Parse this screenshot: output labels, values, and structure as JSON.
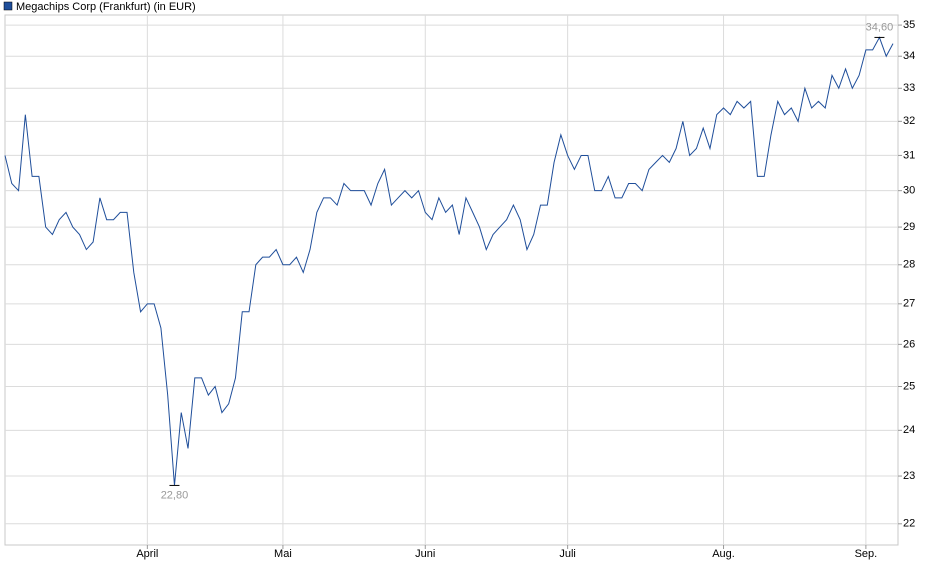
{
  "chart_data": {
    "type": "line",
    "yscale": "log",
    "grid": true,
    "legend": "top-left",
    "ylim": [
      21.57,
      35.33
    ],
    "yticks": [
      22,
      23,
      24,
      25,
      26,
      27,
      28,
      29,
      30,
      31,
      32,
      33,
      34,
      35
    ],
    "categories": [
      null,
      null,
      null,
      null,
      null,
      null,
      null,
      null,
      null,
      null,
      null,
      null,
      null,
      null,
      null,
      null,
      null,
      null,
      null,
      null,
      null,
      "April",
      null,
      null,
      null,
      null,
      null,
      null,
      null,
      null,
      null,
      null,
      null,
      null,
      null,
      null,
      null,
      null,
      null,
      null,
      null,
      "Mai",
      null,
      null,
      null,
      null,
      null,
      null,
      null,
      null,
      null,
      null,
      null,
      null,
      null,
      null,
      null,
      null,
      null,
      null,
      null,
      null,
      "Juni",
      null,
      null,
      null,
      null,
      null,
      null,
      null,
      null,
      null,
      null,
      null,
      null,
      null,
      null,
      null,
      null,
      null,
      null,
      null,
      null,
      "Juli",
      null,
      null,
      null,
      null,
      null,
      null,
      null,
      null,
      null,
      null,
      null,
      null,
      null,
      null,
      null,
      null,
      null,
      null,
      null,
      null,
      null,
      null,
      "Aug.",
      null,
      null,
      null,
      null,
      null,
      null,
      null,
      null,
      null,
      null,
      null,
      null,
      null,
      null,
      null,
      null,
      null,
      null,
      null,
      null,
      "Sep.",
      null,
      null,
      null,
      null
    ],
    "series": [
      {
        "name": "Megachips Corp (Frankfurt) (in EUR)",
        "color": "#1f4e9a",
        "values": [
          31.0,
          30.2,
          30.0,
          32.2,
          30.4,
          30.4,
          29.0,
          28.8,
          29.2,
          29.4,
          29.0,
          28.8,
          28.4,
          28.6,
          29.8,
          29.2,
          29.2,
          29.4,
          29.4,
          27.8,
          26.8,
          27.0,
          27.0,
          26.4,
          24.8,
          22.8,
          24.4,
          23.6,
          25.2,
          25.2,
          24.8,
          25.0,
          24.4,
          24.6,
          25.2,
          26.8,
          26.8,
          28.0,
          28.2,
          28.2,
          28.4,
          28.0,
          28.0,
          28.2,
          27.8,
          28.4,
          29.4,
          29.8,
          29.8,
          29.6,
          30.2,
          30.0,
          30.0,
          30.0,
          29.6,
          30.2,
          30.6,
          29.6,
          29.8,
          30.0,
          29.8,
          30.0,
          29.4,
          29.2,
          29.8,
          29.4,
          29.6,
          28.8,
          29.8,
          29.4,
          29.0,
          28.4,
          28.8,
          29.0,
          29.2,
          29.6,
          29.2,
          28.4,
          28.8,
          29.6,
          29.6,
          30.8,
          31.6,
          31.0,
          30.6,
          31.0,
          31.0,
          30.0,
          30.0,
          30.4,
          29.8,
          29.8,
          30.2,
          30.2,
          30.0,
          30.6,
          30.8,
          31.0,
          30.8,
          31.2,
          32.0,
          31.0,
          31.2,
          31.8,
          31.2,
          32.2,
          32.4,
          32.2,
          32.6,
          32.4,
          32.6,
          30.4,
          30.4,
          31.6,
          32.6,
          32.2,
          32.4,
          32.0,
          33.0,
          32.4,
          32.6,
          32.4,
          33.4,
          33.0,
          33.6,
          33.0,
          33.4,
          34.2,
          34.2,
          34.6,
          34.0,
          34.4
        ],
        "value_labels": [
          null,
          null,
          null,
          null,
          null,
          null,
          null,
          null,
          null,
          null,
          null,
          null,
          null,
          null,
          null,
          null,
          null,
          null,
          null,
          null,
          null,
          null,
          null,
          null,
          null,
          "22,80",
          null,
          null,
          null,
          null,
          null,
          null,
          null,
          null,
          null,
          null,
          null,
          null,
          null,
          null,
          null,
          null,
          null,
          null,
          null,
          null,
          null,
          null,
          null,
          null,
          null,
          null,
          null,
          null,
          null,
          null,
          null,
          null,
          null,
          null,
          null,
          null,
          null,
          null,
          null,
          null,
          null,
          null,
          null,
          null,
          null,
          null,
          null,
          null,
          null,
          null,
          null,
          null,
          null,
          null,
          null,
          null,
          null,
          null,
          null,
          null,
          null,
          null,
          null,
          null,
          null,
          null,
          null,
          null,
          null,
          null,
          null,
          null,
          null,
          null,
          null,
          null,
          null,
          null,
          null,
          null,
          null,
          null,
          null,
          null,
          null,
          null,
          null,
          null,
          null,
          null,
          null,
          null,
          null,
          null,
          null,
          null,
          null,
          null,
          null,
          null,
          null,
          null,
          null,
          "34,60",
          null,
          null
        ]
      }
    ]
  }
}
